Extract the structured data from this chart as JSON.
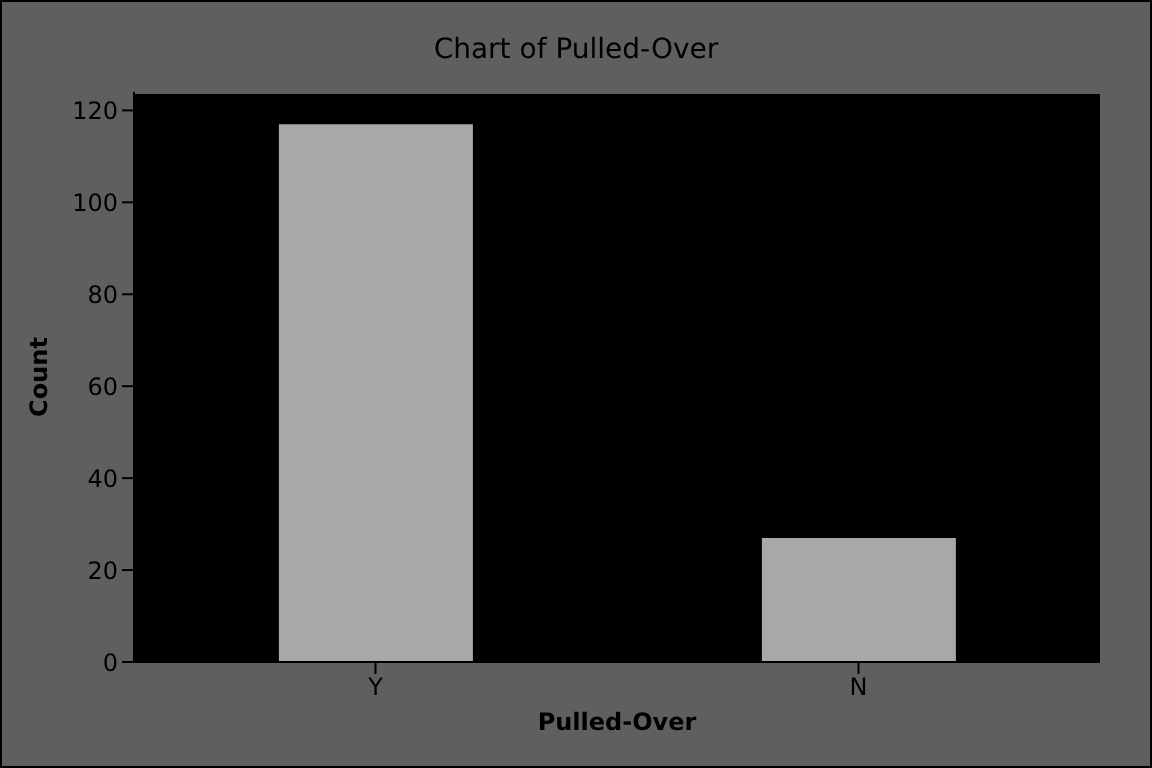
{
  "chart_data": {
    "type": "bar",
    "title": "Chart of Pulled-Over",
    "xlabel": "Pulled-Over",
    "ylabel": "Count",
    "categories": [
      "Y",
      "N"
    ],
    "values": [
      117,
      27
    ],
    "color": "#a8a8a8",
    "ylim": [
      0,
      124
    ],
    "yticks": [
      0,
      20,
      40,
      60,
      80,
      100,
      120
    ],
    "grid": false
  }
}
